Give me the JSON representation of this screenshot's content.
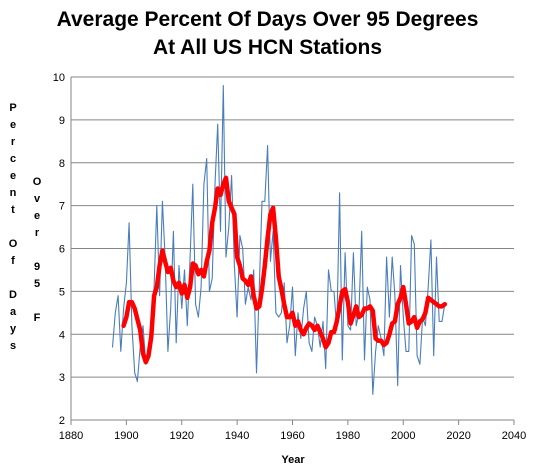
{
  "chart_data": {
    "type": "line",
    "title": [
      "Average Percent Of Days Over 95 Degrees",
      "At All US HCN Stations"
    ],
    "xlabel": "Year",
    "ylabel_lines": [
      "Percent",
      "Of Days",
      "Over",
      "95 F"
    ],
    "xlim": [
      1880,
      2040
    ],
    "ylim": [
      2,
      10
    ],
    "x_ticks": [
      1880,
      1900,
      1920,
      1940,
      1960,
      1980,
      2000,
      2020,
      2040
    ],
    "y_ticks": [
      2,
      3,
      4,
      5,
      6,
      7,
      8,
      9,
      10
    ],
    "grid": "horizontal",
    "legend": "none",
    "series": [
      {
        "role": "annual",
        "color": "#4a7ebb",
        "x": [
          1895,
          1896,
          1897,
          1898,
          1899,
          1900,
          1901,
          1902,
          1903,
          1904,
          1905,
          1906,
          1907,
          1908,
          1909,
          1910,
          1911,
          1912,
          1913,
          1914,
          1915,
          1916,
          1917,
          1918,
          1919,
          1920,
          1921,
          1922,
          1923,
          1924,
          1925,
          1926,
          1927,
          1928,
          1929,
          1930,
          1931,
          1932,
          1933,
          1934,
          1935,
          1936,
          1937,
          1938,
          1939,
          1940,
          1941,
          1942,
          1943,
          1944,
          1945,
          1946,
          1947,
          1948,
          1949,
          1950,
          1951,
          1952,
          1953,
          1954,
          1955,
          1956,
          1957,
          1958,
          1959,
          1960,
          1961,
          1962,
          1963,
          1964,
          1965,
          1966,
          1967,
          1968,
          1969,
          1970,
          1971,
          1972,
          1973,
          1974,
          1975,
          1976,
          1977,
          1978,
          1979,
          1980,
          1981,
          1982,
          1983,
          1984,
          1985,
          1986,
          1987,
          1988,
          1989,
          1990,
          1991,
          1992,
          1993,
          1994,
          1995,
          1996,
          1997,
          1998,
          1999,
          2000,
          2001,
          2002,
          2003,
          2004,
          2005,
          2006,
          2007,
          2008,
          2009,
          2010,
          2011,
          2012,
          2013,
          2014,
          2015
        ],
        "y": [
          3.7,
          4.5,
          4.9,
          3.6,
          4.6,
          5.2,
          6.6,
          4.2,
          3.1,
          2.9,
          3.7,
          4.2,
          3.3,
          3.5,
          4.4,
          5.1,
          7.0,
          4.9,
          7.1,
          5.8,
          3.6,
          4.6,
          6.4,
          3.8,
          5.6,
          4.6,
          5.5,
          4.2,
          5.8,
          7.5,
          4.7,
          4.4,
          5.1,
          7.5,
          8.1,
          5.0,
          5.3,
          7.5,
          8.9,
          6.4,
          9.8,
          5.8,
          6.5,
          7.7,
          5.6,
          4.4,
          6.3,
          6.0,
          4.7,
          5.1,
          4.8,
          5.5,
          3.1,
          5.1,
          7.1,
          7.1,
          8.4,
          5.7,
          6.4,
          4.5,
          4.4,
          4.5,
          5.2,
          3.8,
          4.2,
          5.1,
          3.5,
          4.5,
          3.9,
          4.6,
          5.0,
          3.8,
          3.6,
          4.4,
          4.2,
          3.7,
          4.3,
          3.2,
          5.5,
          5.0,
          5.0,
          4.1,
          7.3,
          3.4,
          5.9,
          4.2,
          4.1,
          5.9,
          4.2,
          4.5,
          6.4,
          3.4,
          5.1,
          4.8,
          2.6,
          3.6,
          4.2,
          3.9,
          3.5,
          5.8,
          4.4,
          5.8,
          4.9,
          2.8,
          5.6,
          4.4,
          3.6,
          3.6,
          6.3,
          6.1,
          3.5,
          3.3,
          4.4,
          4.2,
          5.1,
          6.2,
          3.5,
          5.8,
          4.3,
          4.3,
          4.7
        ]
      },
      {
        "role": "moving-average",
        "color": "#ff0000",
        "x": [
          1899,
          1900,
          1901,
          1902,
          1903,
          1904,
          1905,
          1906,
          1907,
          1908,
          1909,
          1910,
          1911,
          1912,
          1913,
          1914,
          1915,
          1916,
          1917,
          1918,
          1919,
          1920,
          1921,
          1922,
          1923,
          1924,
          1925,
          1926,
          1927,
          1928,
          1929,
          1930,
          1931,
          1932,
          1933,
          1934,
          1935,
          1936,
          1937,
          1938,
          1939,
          1940,
          1941,
          1942,
          1943,
          1944,
          1945,
          1946,
          1947,
          1948,
          1949,
          1950,
          1951,
          1952,
          1953,
          1954,
          1955,
          1956,
          1957,
          1958,
          1959,
          1960,
          1961,
          1962,
          1963,
          1964,
          1965,
          1966,
          1967,
          1968,
          1969,
          1970,
          1971,
          1972,
          1973,
          1974,
          1975,
          1976,
          1977,
          1978,
          1979,
          1980,
          1981,
          1982,
          1983,
          1984,
          1985,
          1986,
          1987,
          1988,
          1989,
          1990,
          1991,
          1992,
          1993,
          1994,
          1995,
          1996,
          1997,
          1998,
          1999,
          2000,
          2001,
          2002,
          2003,
          2004,
          2005,
          2006,
          2007,
          2008,
          2009,
          2010,
          2011,
          2012,
          2013,
          2014,
          2015
        ],
        "y": [
          4.2,
          4.4,
          4.75,
          4.75,
          4.6,
          4.35,
          4.1,
          3.55,
          3.35,
          3.5,
          3.95,
          4.9,
          5.1,
          5.6,
          5.95,
          5.7,
          5.45,
          5.55,
          5.25,
          5.1,
          5.2,
          4.95,
          5.15,
          4.85,
          5.1,
          5.65,
          5.6,
          5.4,
          5.5,
          5.35,
          5.7,
          5.95,
          6.6,
          6.95,
          7.4,
          7.25,
          7.5,
          7.65,
          7.1,
          6.95,
          6.8,
          5.8,
          5.6,
          5.3,
          5.25,
          5.15,
          5.35,
          4.9,
          4.6,
          4.65,
          5.05,
          5.6,
          6.25,
          6.8,
          6.95,
          6.25,
          5.35,
          5.05,
          4.7,
          4.4,
          4.4,
          4.5,
          4.2,
          4.3,
          4.1,
          4.0,
          4.15,
          4.25,
          4.2,
          4.1,
          4.2,
          4.05,
          3.9,
          3.7,
          3.8,
          4.05,
          4.05,
          4.3,
          4.65,
          5.0,
          5.05,
          4.75,
          4.25,
          4.45,
          4.65,
          4.4,
          4.45,
          4.6,
          4.6,
          4.65,
          4.55,
          3.9,
          3.85,
          3.85,
          3.75,
          3.8,
          4.0,
          4.25,
          4.3,
          4.7,
          4.85,
          5.1,
          4.7,
          4.25,
          4.3,
          4.4,
          4.15,
          4.3,
          4.35,
          4.5,
          4.85,
          4.8,
          4.75,
          4.7,
          4.65,
          4.65,
          4.7
        ]
      }
    ]
  }
}
